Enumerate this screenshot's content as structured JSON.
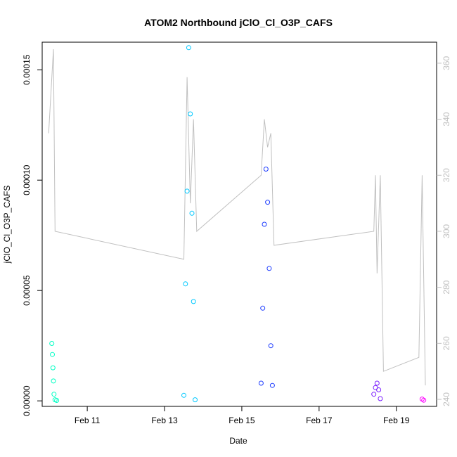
{
  "chart_data": {
    "type": "scatter",
    "title": "ATOM2 Northbound jClO_Cl_O3P_CAFS",
    "xlabel": "Date",
    "ylabel": "jClO_Cl_O3P_CAFS",
    "x_ticks": [
      "Feb 11",
      "Feb 13",
      "Feb 15",
      "Feb 17",
      "Feb 19"
    ],
    "y_ticks": [
      "0.00000",
      "0.00005",
      "0.00010",
      "0.00015"
    ],
    "y2_ticks": [
      "240",
      "260",
      "280",
      "300",
      "320",
      "340",
      "360"
    ],
    "xlim": [
      "Feb 9 20:00",
      "Feb 20 01:00"
    ],
    "ylim": [
      -2.5e-06,
      0.0001625
    ],
    "y2lim": [
      237.5,
      367.5
    ],
    "grid": false,
    "legend": "none",
    "colors": {
      "secondary_line": "#c0c0c0",
      "point_colors": [
        "#00ffc4",
        "#00c8ff",
        "#1c3bff",
        "#7a1cff",
        "#ff00ff"
      ]
    },
    "series": [
      {
        "values": [
          {
            "x": "Feb 10 02:00",
            "y": 2.6e-05
          },
          {
            "x": "Feb 10 02:20",
            "y": 2.1e-05
          },
          {
            "x": "Feb 10 02:40",
            "y": 1.5e-05
          },
          {
            "x": "Feb 10 03:00",
            "y": 9e-06
          },
          {
            "x": "Feb 10 03:20",
            "y": 3e-06
          },
          {
            "x": "Feb 10 04:00",
            "y": 5e-07
          },
          {
            "x": "Feb 10 05:00",
            "y": 2e-07
          }
        ]
      },
      {
        "values": [
          {
            "x": "Feb 13 12:00",
            "y": 2.5e-06
          },
          {
            "x": "Feb 13 13:00",
            "y": 5.3e-05
          },
          {
            "x": "Feb 13 14:00",
            "y": 9.5e-05
          },
          {
            "x": "Feb 13 15:00",
            "y": 0.00016
          },
          {
            "x": "Feb 13 16:00",
            "y": 0.00013
          },
          {
            "x": "Feb 13 17:00",
            "y": 8.5e-05
          },
          {
            "x": "Feb 13 18:00",
            "y": 4.5e-05
          },
          {
            "x": "Feb 13 19:00",
            "y": 5e-07
          }
        ]
      },
      {
        "values": [
          {
            "x": "Feb 15 12:00",
            "y": 8e-06
          },
          {
            "x": "Feb 15 13:00",
            "y": 4.2e-05
          },
          {
            "x": "Feb 15 14:00",
            "y": 8e-05
          },
          {
            "x": "Feb 15 15:00",
            "y": 0.000105
          },
          {
            "x": "Feb 15 16:00",
            "y": 9e-05
          },
          {
            "x": "Feb 15 17:00",
            "y": 6e-05
          },
          {
            "x": "Feb 15 18:00",
            "y": 2.5e-05
          },
          {
            "x": "Feb 15 19:00",
            "y": 7e-06
          }
        ]
      },
      {
        "values": [
          {
            "x": "Feb 18 10:00",
            "y": 3e-06
          },
          {
            "x": "Feb 18 11:00",
            "y": 6e-06
          },
          {
            "x": "Feb 18 12:00",
            "y": 8e-06
          },
          {
            "x": "Feb 18 13:00",
            "y": 5e-06
          },
          {
            "x": "Feb 18 14:00",
            "y": 1e-06
          }
        ]
      },
      {
        "values": [
          {
            "x": "Feb 19 16:00",
            "y": 8e-07
          },
          {
            "x": "Feb 19 17:00",
            "y": 3e-07
          }
        ]
      }
    ],
    "secondary_series": {
      "axis": "right",
      "values": [
        {
          "x": "Feb 10 00:00",
          "y": 335
        },
        {
          "x": "Feb 10 03:00",
          "y": 365
        },
        {
          "x": "Feb 10 04:00",
          "y": 300
        },
        {
          "x": "Feb 13 12:00",
          "y": 290
        },
        {
          "x": "Feb 13 14:00",
          "y": 355
        },
        {
          "x": "Feb 13 16:00",
          "y": 310
        },
        {
          "x": "Feb 13 18:00",
          "y": 340
        },
        {
          "x": "Feb 13 20:00",
          "y": 300
        },
        {
          "x": "Feb 15 12:00",
          "y": 320
        },
        {
          "x": "Feb 15 14:00",
          "y": 340
        },
        {
          "x": "Feb 15 16:00",
          "y": 330
        },
        {
          "x": "Feb 15 18:00",
          "y": 335
        },
        {
          "x": "Feb 15 20:00",
          "y": 295
        },
        {
          "x": "Feb 18 10:00",
          "y": 300
        },
        {
          "x": "Feb 18 11:00",
          "y": 320
        },
        {
          "x": "Feb 18 12:00",
          "y": 285
        },
        {
          "x": "Feb 18 14:00",
          "y": 320
        },
        {
          "x": "Feb 18 16:00",
          "y": 250
        },
        {
          "x": "Feb 19 14:00",
          "y": 255
        },
        {
          "x": "Feb 19 16:00",
          "y": 320
        },
        {
          "x": "Feb 19 18:00",
          "y": 245
        }
      ]
    }
  }
}
